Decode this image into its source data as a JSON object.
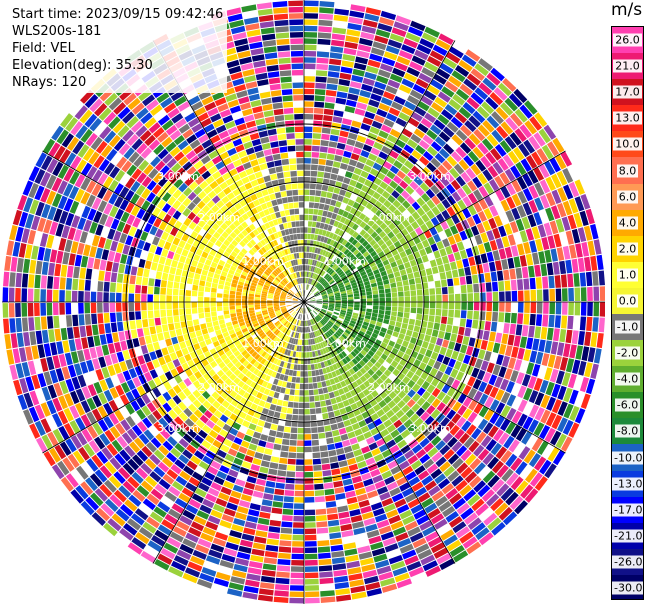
{
  "header": {
    "start_time": "Start time: 2023/09/15 09:42:46",
    "instrument": "WLS200s-181",
    "field": "Field: VEL",
    "elevation": "Elevation(deg): 35.30",
    "nrays": "NRays: 120"
  },
  "colorbar": {
    "unit": "m/s",
    "ticks": [
      "26.0",
      "21.0",
      "17.0",
      "13.0",
      "10.0",
      "8.0",
      "6.0",
      "4.0",
      "2.0",
      "1.0",
      "0.0",
      "-1.0",
      "-2.0",
      "-4.0",
      "-6.0",
      "-8.0",
      "-10.0",
      "-13.0",
      "-17.0",
      "-21.0",
      "-26.0",
      "-30.0"
    ],
    "colors": [
      "#ff3fb0",
      "#ee1a72",
      "#d0121f",
      "#ff2a1a",
      "#ff4a1a",
      "#ff6f50",
      "#ff9a55",
      "#ffaa00",
      "#ffd400",
      "#ffff33",
      "#f5f532",
      "#777777",
      "#9bd23c",
      "#5fae2f",
      "#2a8f2a",
      "#1c8a3a",
      "#1c63c6",
      "#0a3be0",
      "#0000ff",
      "#0000aa",
      "#111188",
      "#000066"
    ]
  },
  "chart_data": {
    "type": "heatmap",
    "projection": "polar PPI",
    "field": "VEL",
    "unit": "m/s",
    "nrays": 120,
    "elevation_deg": 35.3,
    "range_ring_labels": [
      "1.00km",
      "2.00km",
      "3.00km"
    ],
    "value_range": [
      -30.0,
      26.0
    ],
    "pattern": {
      "near_range_west": "positive 1 to 6 m/s (yellow/orange)",
      "near_range_east": "negative -2 to -6 m/s (green)",
      "north_south": "near 0 m/s (gray)",
      "far_range": "noisy, all colors"
    }
  }
}
